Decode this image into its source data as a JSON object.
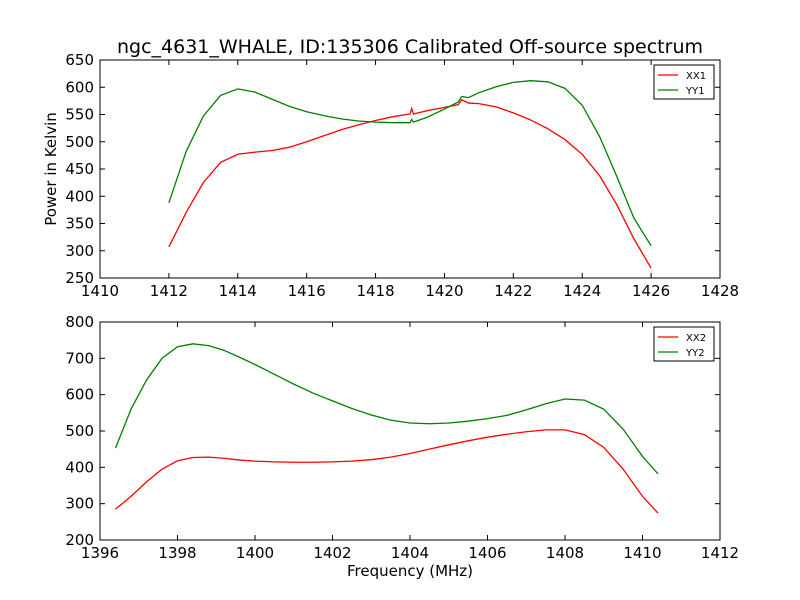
{
  "chart_data": [
    {
      "type": "line",
      "title": "ngc_4631_WHALE, ID:135306 Calibrated Off-source spectrum",
      "xlabel": "",
      "ylabel": "Power in Kelvin",
      "xlim": [
        1410,
        1428
      ],
      "ylim": [
        250,
        650
      ],
      "xticks": [
        1410,
        1412,
        1414,
        1416,
        1418,
        1420,
        1422,
        1424,
        1426,
        1428
      ],
      "yticks": [
        250,
        300,
        350,
        400,
        450,
        500,
        550,
        600,
        650
      ],
      "grid": false,
      "legend": "top-right",
      "series": [
        {
          "name": "XX1",
          "color": "#ff0000",
          "x": [
            1412.0,
            1412.5,
            1413.0,
            1413.5,
            1414.0,
            1414.5,
            1415.0,
            1415.5,
            1416.0,
            1416.5,
            1417.0,
            1417.5,
            1418.0,
            1418.5,
            1419.0,
            1419.05,
            1419.1,
            1419.5,
            1420.0,
            1420.4,
            1420.5,
            1420.7,
            1421.0,
            1421.5,
            1422.0,
            1422.5,
            1423.0,
            1423.5,
            1424.0,
            1424.5,
            1425.0,
            1425.5,
            1426.0
          ],
          "y": [
            307,
            370,
            425,
            462,
            477,
            481,
            484,
            490,
            500,
            511,
            522,
            531,
            539,
            546,
            551,
            561,
            551,
            557,
            563,
            568,
            577,
            571,
            570,
            564,
            553,
            540,
            524,
            504,
            477,
            438,
            385,
            322,
            268
          ]
        },
        {
          "name": "YY1",
          "color": "#008000",
          "x": [
            1412.0,
            1412.5,
            1413.0,
            1413.5,
            1414.0,
            1414.5,
            1415.0,
            1415.5,
            1416.0,
            1416.5,
            1417.0,
            1417.5,
            1418.0,
            1418.5,
            1419.0,
            1419.05,
            1419.1,
            1419.5,
            1420.0,
            1420.4,
            1420.5,
            1420.7,
            1421.0,
            1421.5,
            1422.0,
            1422.5,
            1423.0,
            1423.5,
            1424.0,
            1424.5,
            1425.0,
            1425.5,
            1426.0
          ],
          "y": [
            388,
            482,
            547,
            585,
            597,
            591,
            578,
            565,
            555,
            548,
            542,
            538,
            536,
            535,
            535,
            541,
            536,
            545,
            560,
            573,
            583,
            581,
            590,
            601,
            609,
            612,
            610,
            598,
            567,
            510,
            437,
            360,
            309
          ]
        }
      ]
    },
    {
      "type": "line",
      "title": "",
      "xlabel": "Frequency (MHz)",
      "ylabel": "",
      "xlim": [
        1396,
        1412
      ],
      "ylim": [
        200,
        800
      ],
      "xticks": [
        1396,
        1398,
        1400,
        1402,
        1404,
        1406,
        1408,
        1410,
        1412
      ],
      "yticks": [
        200,
        300,
        400,
        500,
        600,
        700,
        800
      ],
      "grid": false,
      "legend": "top-right",
      "series": [
        {
          "name": "XX2",
          "color": "#ff0000",
          "x": [
            1396.4,
            1396.8,
            1397.2,
            1397.6,
            1398.0,
            1398.4,
            1398.8,
            1399.2,
            1399.6,
            1400.0,
            1400.5,
            1401.0,
            1401.5,
            1402.0,
            1402.5,
            1403.0,
            1403.5,
            1404.0,
            1404.5,
            1405.0,
            1405.5,
            1406.0,
            1406.5,
            1407.0,
            1407.5,
            1408.0,
            1408.5,
            1409.0,
            1409.5,
            1410.0,
            1410.4
          ],
          "y": [
            285,
            320,
            360,
            395,
            418,
            427,
            428,
            425,
            420,
            417,
            415,
            414,
            414,
            415,
            417,
            421,
            428,
            438,
            450,
            462,
            473,
            483,
            491,
            498,
            503,
            503,
            490,
            455,
            395,
            320,
            274
          ]
        },
        {
          "name": "YY2",
          "color": "#008000",
          "x": [
            1396.4,
            1396.8,
            1397.2,
            1397.6,
            1398.0,
            1398.4,
            1398.8,
            1399.2,
            1399.6,
            1400.0,
            1400.5,
            1401.0,
            1401.5,
            1402.0,
            1402.5,
            1403.0,
            1403.5,
            1404.0,
            1404.5,
            1405.0,
            1405.5,
            1406.0,
            1406.5,
            1407.0,
            1407.5,
            1408.0,
            1408.5,
            1409.0,
            1409.5,
            1410.0,
            1410.4
          ],
          "y": [
            453,
            560,
            640,
            700,
            732,
            740,
            735,
            722,
            703,
            683,
            656,
            629,
            604,
            583,
            562,
            544,
            530,
            522,
            520,
            522,
            527,
            534,
            543,
            558,
            575,
            588,
            585,
            560,
            505,
            430,
            382
          ]
        }
      ]
    }
  ]
}
